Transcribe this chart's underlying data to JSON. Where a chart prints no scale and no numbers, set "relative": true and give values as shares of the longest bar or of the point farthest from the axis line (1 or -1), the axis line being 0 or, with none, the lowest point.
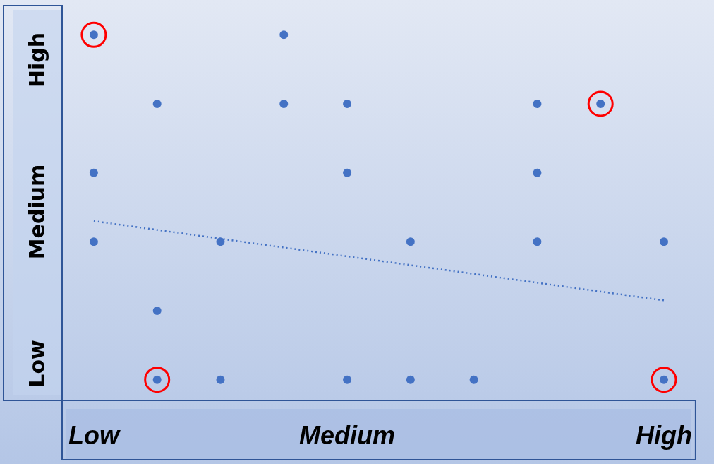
{
  "chart_data": {
    "type": "scatter",
    "grid": false,
    "legend": false,
    "marker": "circle",
    "relative": true,
    "categories": [
      "Low",
      null,
      null,
      null,
      "Medium",
      null,
      null,
      null,
      null,
      "High"
    ],
    "annotations": [
      "Low",
      "Medium",
      "High"
    ],
    "series": [
      {
        "color": "#4472c4",
        "values": [
          1,
          null,
          null,
          1,
          null,
          null,
          null,
          null,
          null,
          null
        ]
      },
      {
        "color": "#4472c4",
        "values": [
          null,
          0.8,
          null,
          0.8,
          0.8,
          null,
          null,
          0.8,
          0.8,
          null
        ]
      },
      {
        "color": "#4472c4",
        "values": [
          0.6,
          null,
          null,
          null,
          0.6,
          null,
          null,
          0.6,
          null,
          null
        ]
      },
      {
        "color": "#4472c4",
        "values": [
          0.4,
          null,
          0.4,
          null,
          null,
          0.4,
          null,
          0.4,
          null,
          0.4
        ]
      },
      {
        "color": "#4472c4",
        "values": [
          null,
          0.2,
          null,
          null,
          null,
          null,
          null,
          null,
          null,
          null
        ]
      },
      {
        "color": "#4472c4",
        "values": [
          null,
          0,
          0,
          null,
          0,
          0,
          0,
          null,
          null,
          0
        ]
      },
      {
        "color": "#ff0000",
        "line_style": "solid",
        "values": [
          1,
          0,
          null,
          null,
          null,
          null,
          null,
          null,
          0.8,
          0
        ]
      },
      {
        "type": "line",
        "color": "#4472c4",
        "line_style": "dotted",
        "marker": "none",
        "values": [
          0.46,
          null,
          null,
          null,
          null,
          null,
          null,
          null,
          null,
          0.23
        ]
      }
    ]
  }
}
